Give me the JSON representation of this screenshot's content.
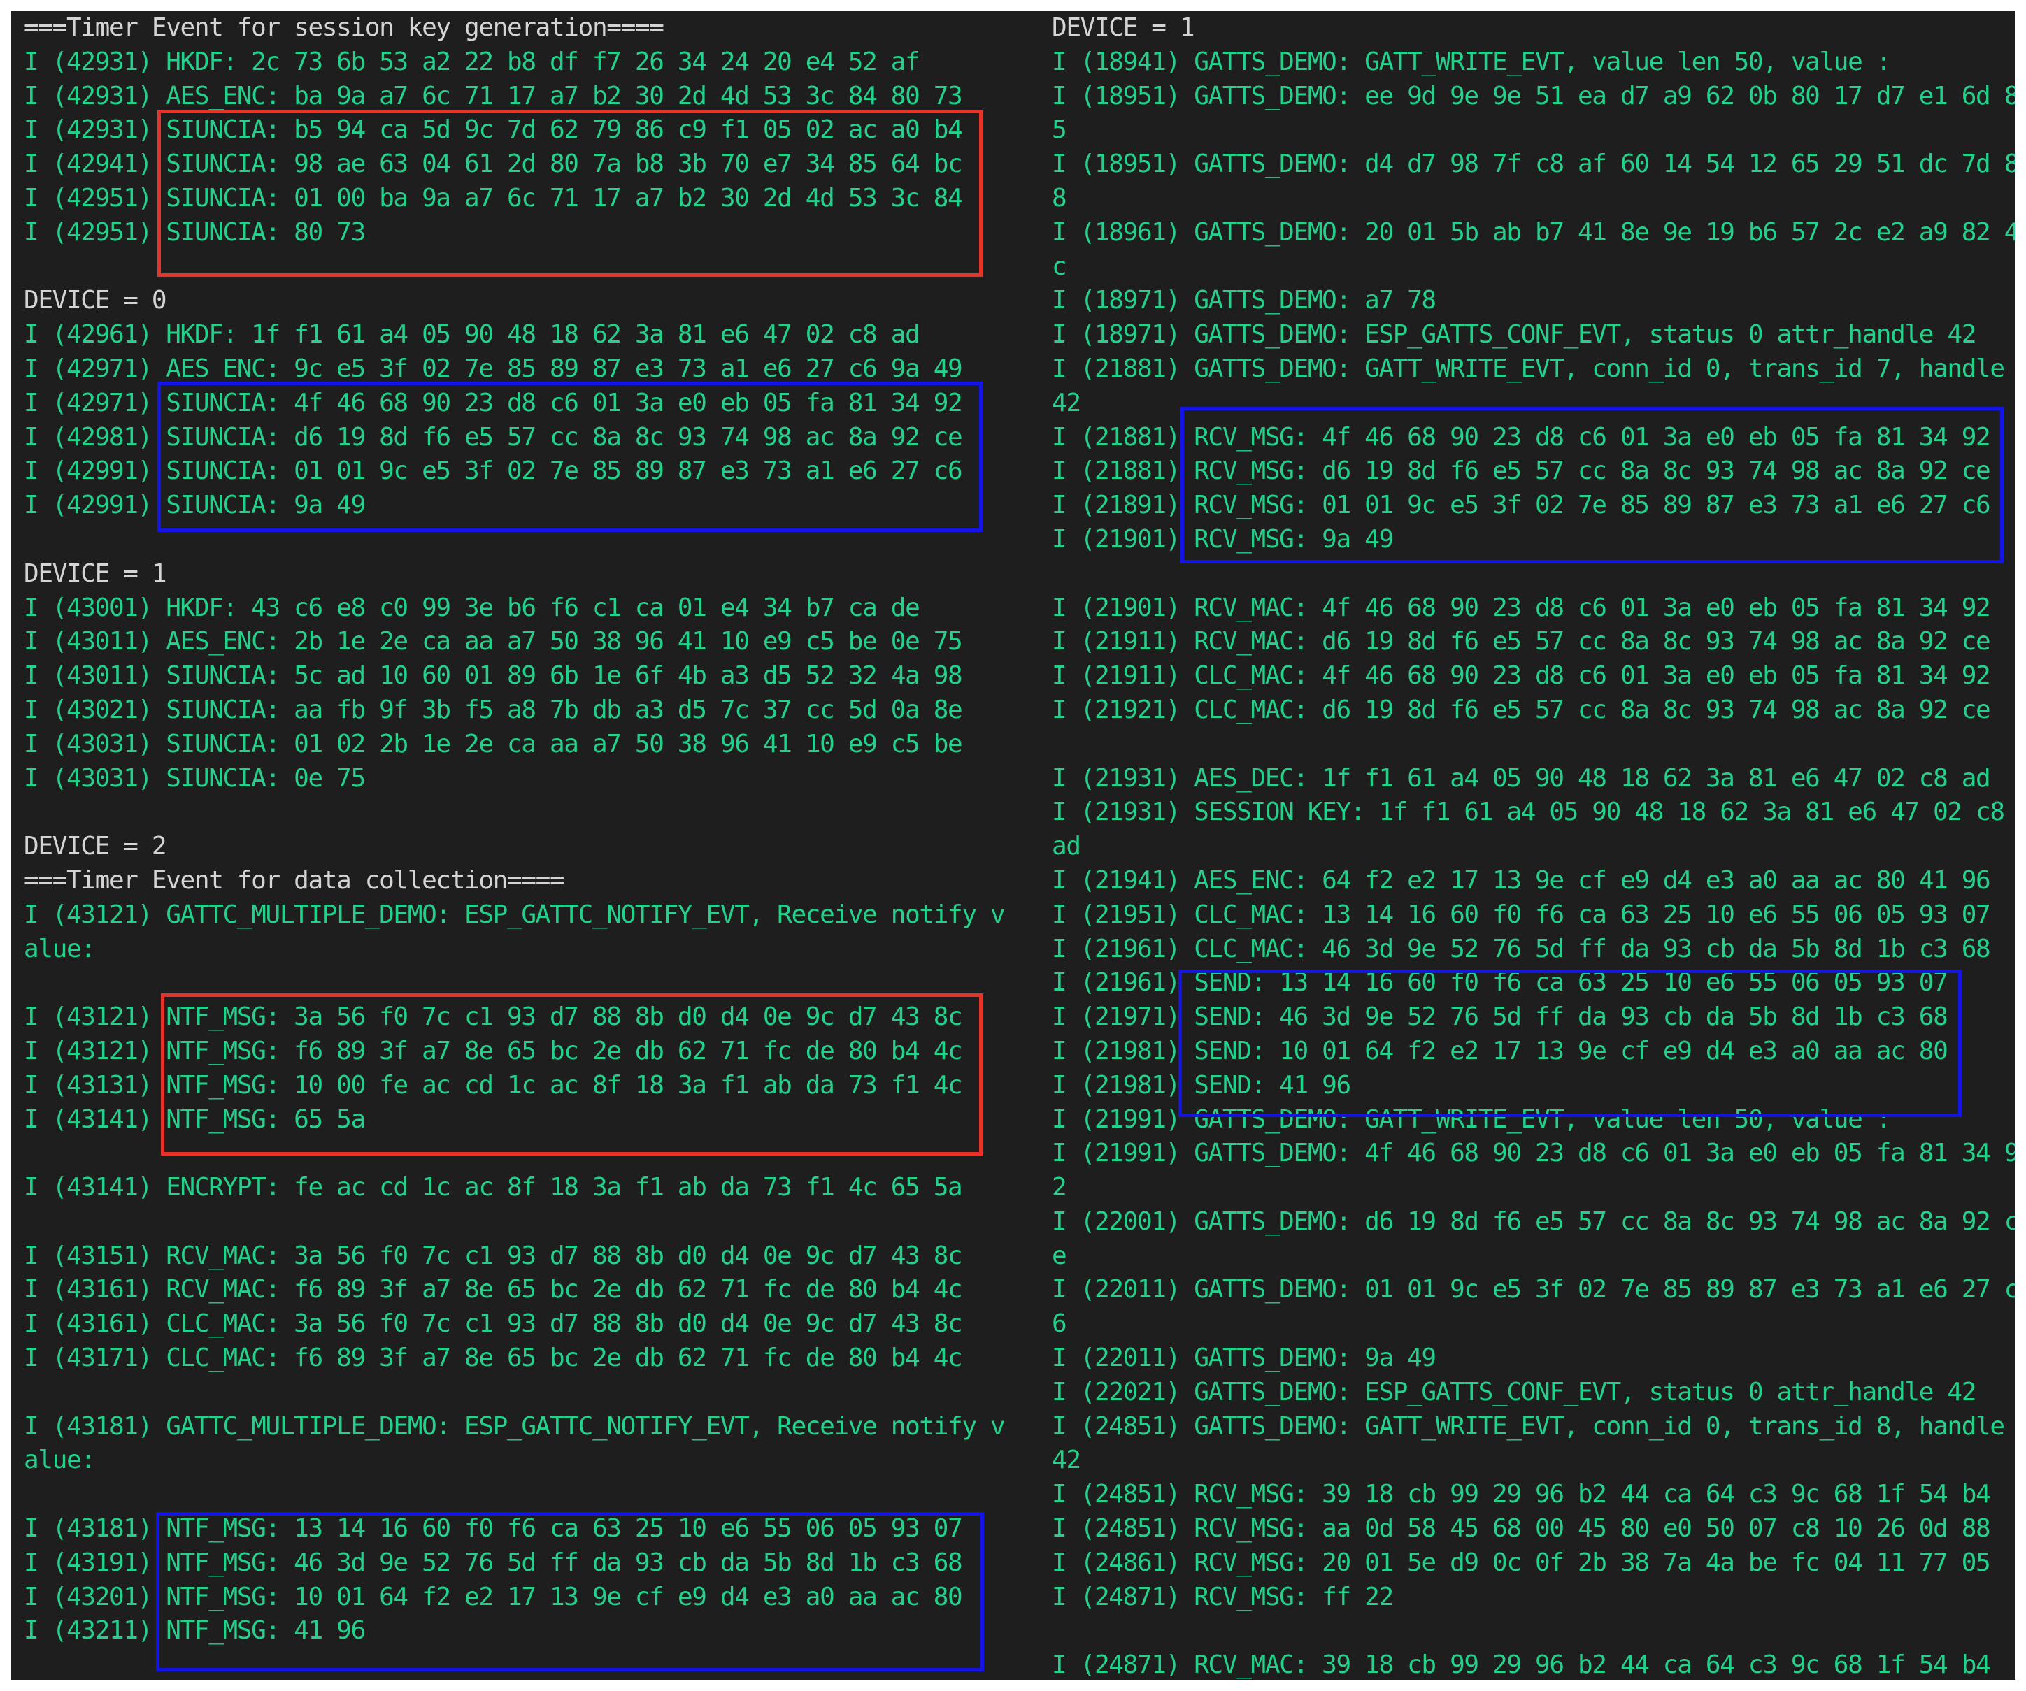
{
  "left_lines": [
    {
      "text": "===Timer Event for session key generation====",
      "hdr": true
    },
    {
      "text": "I (42931) HKDF: 2c 73 6b 53 a2 22 b8 df f7 26 34 24 20 e4 52 af"
    },
    {
      "text": "I (42931) AES_ENC: ba 9a a7 6c 71 17 a7 b2 30 2d 4d 53 3c 84 80 73"
    },
    {
      "text": "I (42931) SIUNCIA: b5 94 ca 5d 9c 7d 62 79 86 c9 f1 05 02 ac a0 b4"
    },
    {
      "text": "I (42941) SIUNCIA: 98 ae 63 04 61 2d 80 7a b8 3b 70 e7 34 85 64 bc"
    },
    {
      "text": "I (42951) SIUNCIA: 01 00 ba 9a a7 6c 71 17 a7 b2 30 2d 4d 53 3c 84"
    },
    {
      "text": "I (42951) SIUNCIA: 80 73"
    },
    {
      "text": ""
    },
    {
      "text": "DEVICE = 0",
      "hdr": true
    },
    {
      "text": "I (42961) HKDF: 1f f1 61 a4 05 90 48 18 62 3a 81 e6 47 02 c8 ad"
    },
    {
      "text": "I (42971) AES_ENC: 9c e5 3f 02 7e 85 89 87 e3 73 a1 e6 27 c6 9a 49"
    },
    {
      "text": "I (42971) SIUNCIA: 4f 46 68 90 23 d8 c6 01 3a e0 eb 05 fa 81 34 92"
    },
    {
      "text": "I (42981) SIUNCIA: d6 19 8d f6 e5 57 cc 8a 8c 93 74 98 ac 8a 92 ce"
    },
    {
      "text": "I (42991) SIUNCIA: 01 01 9c e5 3f 02 7e 85 89 87 e3 73 a1 e6 27 c6"
    },
    {
      "text": "I (42991) SIUNCIA: 9a 49"
    },
    {
      "text": ""
    },
    {
      "text": "DEVICE = 1",
      "hdr": true
    },
    {
      "text": "I (43001) HKDF: 43 c6 e8 c0 99 3e b6 f6 c1 ca 01 e4 34 b7 ca de"
    },
    {
      "text": "I (43011) AES_ENC: 2b 1e 2e ca aa a7 50 38 96 41 10 e9 c5 be 0e 75"
    },
    {
      "text": "I (43011) SIUNCIA: 5c ad 10 60 01 89 6b 1e 6f 4b a3 d5 52 32 4a 98"
    },
    {
      "text": "I (43021) SIUNCIA: aa fb 9f 3b f5 a8 7b db a3 d5 7c 37 cc 5d 0a 8e"
    },
    {
      "text": "I (43031) SIUNCIA: 01 02 2b 1e 2e ca aa a7 50 38 96 41 10 e9 c5 be"
    },
    {
      "text": "I (43031) SIUNCIA: 0e 75"
    },
    {
      "text": ""
    },
    {
      "text": "DEVICE = 2",
      "hdr": true
    },
    {
      "text": "===Timer Event for data collection====",
      "hdr": true
    },
    {
      "text": "I (43121) GATTC_MULTIPLE_DEMO: ESP_GATTC_NOTIFY_EVT, Receive notify v"
    },
    {
      "text": "alue:"
    },
    {
      "text": ""
    },
    {
      "text": "I (43121) NTF_MSG: 3a 56 f0 7c c1 93 d7 88 8b d0 d4 0e 9c d7 43 8c"
    },
    {
      "text": "I (43121) NTF_MSG: f6 89 3f a7 8e 65 bc 2e db 62 71 fc de 80 b4 4c"
    },
    {
      "text": "I (43131) NTF_MSG: 10 00 fe ac cd 1c ac 8f 18 3a f1 ab da 73 f1 4c"
    },
    {
      "text": "I (43141) NTF_MSG: 65 5a"
    },
    {
      "text": ""
    },
    {
      "text": "I (43141) ENCRYPT: fe ac cd 1c ac 8f 18 3a f1 ab da 73 f1 4c 65 5a"
    },
    {
      "text": ""
    },
    {
      "text": "I (43151) RCV_MAC: 3a 56 f0 7c c1 93 d7 88 8b d0 d4 0e 9c d7 43 8c"
    },
    {
      "text": "I (43161) RCV_MAC: f6 89 3f a7 8e 65 bc 2e db 62 71 fc de 80 b4 4c"
    },
    {
      "text": "I (43161) CLC_MAC: 3a 56 f0 7c c1 93 d7 88 8b d0 d4 0e 9c d7 43 8c"
    },
    {
      "text": "I (43171) CLC_MAC: f6 89 3f a7 8e 65 bc 2e db 62 71 fc de 80 b4 4c"
    },
    {
      "text": ""
    },
    {
      "text": "I (43181) GATTC_MULTIPLE_DEMO: ESP_GATTC_NOTIFY_EVT, Receive notify v"
    },
    {
      "text": "alue:"
    },
    {
      "text": ""
    },
    {
      "text": "I (43181) NTF_MSG: 13 14 16 60 f0 f6 ca 63 25 10 e6 55 06 05 93 07"
    },
    {
      "text": "I (43191) NTF_MSG: 46 3d 9e 52 76 5d ff da 93 cb da 5b 8d 1b c3 68"
    },
    {
      "text": "I (43201) NTF_MSG: 10 01 64 f2 e2 17 13 9e cf e9 d4 e3 a0 aa ac 80"
    },
    {
      "text": "I (43211) NTF_MSG: 41 96"
    }
  ],
  "right_lines": [
    {
      "text": "DEVICE = 1",
      "hdr": true
    },
    {
      "text": "I (18941) GATTS_DEMO: GATT_WRITE_EVT, value len 50, value :"
    },
    {
      "text": "I (18951) GATTS_DEMO: ee 9d 9e 9e 51 ea d7 a9 62 0b 80 17 d7 e1 6d 8"
    },
    {
      "text": "5"
    },
    {
      "text": "I (18951) GATTS_DEMO: d4 d7 98 7f c8 af 60 14 54 12 65 29 51 dc 7d 8"
    },
    {
      "text": "8"
    },
    {
      "text": "I (18961) GATTS_DEMO: 20 01 5b ab b7 41 8e 9e 19 b6 57 2c e2 a9 82 4"
    },
    {
      "text": "c"
    },
    {
      "text": "I (18971) GATTS_DEMO: a7 78"
    },
    {
      "text": "I (18971) GATTS_DEMO: ESP_GATTS_CONF_EVT, status 0 attr_handle 42"
    },
    {
      "text": "I (21881) GATTS_DEMO: GATT_WRITE_EVT, conn_id 0, trans_id 7, handle"
    },
    {
      "text": "42"
    },
    {
      "text": "I (21881) RCV_MSG: 4f 46 68 90 23 d8 c6 01 3a e0 eb 05 fa 81 34 92"
    },
    {
      "text": "I (21881) RCV_MSG: d6 19 8d f6 e5 57 cc 8a 8c 93 74 98 ac 8a 92 ce"
    },
    {
      "text": "I (21891) RCV_MSG: 01 01 9c e5 3f 02 7e 85 89 87 e3 73 a1 e6 27 c6"
    },
    {
      "text": "I (21901) RCV_MSG: 9a 49"
    },
    {
      "text": ""
    },
    {
      "text": "I (21901) RCV_MAC: 4f 46 68 90 23 d8 c6 01 3a e0 eb 05 fa 81 34 92"
    },
    {
      "text": "I (21911) RCV_MAC: d6 19 8d f6 e5 57 cc 8a 8c 93 74 98 ac 8a 92 ce"
    },
    {
      "text": "I (21911) CLC_MAC: 4f 46 68 90 23 d8 c6 01 3a e0 eb 05 fa 81 34 92"
    },
    {
      "text": "I (21921) CLC_MAC: d6 19 8d f6 e5 57 cc 8a 8c 93 74 98 ac 8a 92 ce"
    },
    {
      "text": ""
    },
    {
      "text": "I (21931) AES_DEC: 1f f1 61 a4 05 90 48 18 62 3a 81 e6 47 02 c8 ad"
    },
    {
      "text": "I (21931) SESSION KEY: 1f f1 61 a4 05 90 48 18 62 3a 81 e6 47 02 c8"
    },
    {
      "text": "ad"
    },
    {
      "text": "I (21941) AES_ENC: 64 f2 e2 17 13 9e cf e9 d4 e3 a0 aa ac 80 41 96"
    },
    {
      "text": "I (21951) CLC_MAC: 13 14 16 60 f0 f6 ca 63 25 10 e6 55 06 05 93 07"
    },
    {
      "text": "I (21961) CLC_MAC: 46 3d 9e 52 76 5d ff da 93 cb da 5b 8d 1b c3 68"
    },
    {
      "text": "I (21961) SEND: 13 14 16 60 f0 f6 ca 63 25 10 e6 55 06 05 93 07"
    },
    {
      "text": "I (21971) SEND: 46 3d 9e 52 76 5d ff da 93 cb da 5b 8d 1b c3 68"
    },
    {
      "text": "I (21981) SEND: 10 01 64 f2 e2 17 13 9e cf e9 d4 e3 a0 aa ac 80"
    },
    {
      "text": "I (21981) SEND: 41 96"
    },
    {
      "text": "I (21991) GATTS_DEMO: GATT_WRITE_EVT, value len 50, value :"
    },
    {
      "text": "I (21991) GATTS_DEMO: 4f 46 68 90 23 d8 c6 01 3a e0 eb 05 fa 81 34 9"
    },
    {
      "text": "2"
    },
    {
      "text": "I (22001) GATTS_DEMO: d6 19 8d f6 e5 57 cc 8a 8c 93 74 98 ac 8a 92 c"
    },
    {
      "text": "e"
    },
    {
      "text": "I (22011) GATTS_DEMO: 01 01 9c e5 3f 02 7e 85 89 87 e3 73 a1 e6 27 c"
    },
    {
      "text": "6"
    },
    {
      "text": "I (22011) GATTS_DEMO: 9a 49"
    },
    {
      "text": "I (22021) GATTS_DEMO: ESP_GATTS_CONF_EVT, status 0 attr_handle 42"
    },
    {
      "text": "I (24851) GATTS_DEMO: GATT_WRITE_EVT, conn_id 0, trans_id 8, handle"
    },
    {
      "text": "42"
    },
    {
      "text": "I (24851) RCV_MSG: 39 18 cb 99 29 96 b2 44 ca 64 c3 9c 68 1f 54 b4"
    },
    {
      "text": "I (24851) RCV_MSG: aa 0d 58 45 68 00 45 80 e0 50 07 c8 10 26 0d 88"
    },
    {
      "text": "I (24861) RCV_MSG: 20 01 5e d9 0c 0f 2b 38 7a 4a be fc 04 11 77 05"
    },
    {
      "text": "I (24871) RCV_MSG: ff 22"
    },
    {
      "text": ""
    },
    {
      "text": "I (24871) RCV_MAC: 39 18 cb 99 29 96 b2 44 ca 64 c3 9c 68 1f 54 b4"
    }
  ],
  "highlights": [
    {
      "name": "highlight-box-siuncia-session",
      "color": "red"
    },
    {
      "name": "highlight-box-siuncia-device0",
      "color": "blue"
    },
    {
      "name": "highlight-box-ntf-msg-first",
      "color": "red"
    },
    {
      "name": "highlight-box-ntf-msg-second",
      "color": "blue"
    },
    {
      "name": "highlight-box-rcv-msg",
      "color": "blue"
    },
    {
      "name": "highlight-box-send",
      "color": "blue"
    }
  ],
  "colors": {
    "background": "#1e1e1e",
    "log_text": "#23d18b",
    "header_text": "#d4d4d4",
    "box_red": "#e8332a",
    "box_blue": "#1414e6"
  }
}
